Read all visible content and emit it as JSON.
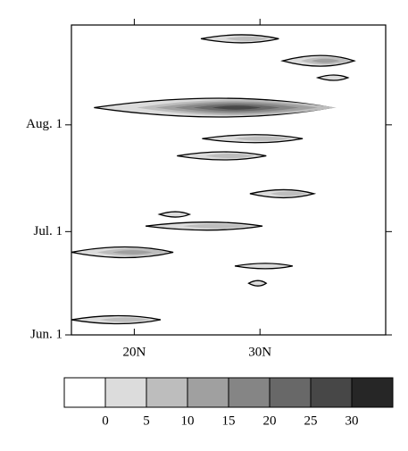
{
  "chart_data": {
    "type": "contour",
    "xlim": [
      15,
      40
    ],
    "xticks": [
      {
        "value": 20,
        "label": "20N"
      },
      {
        "value": 30,
        "label": "30N"
      }
    ],
    "ylim": [
      0,
      90
    ],
    "yticks": [
      {
        "value": 0,
        "label": "Jun. 1"
      },
      {
        "value": 30,
        "label": "Jul. 1"
      },
      {
        "value": 61,
        "label": "Aug. 1"
      }
    ],
    "features": [
      {
        "lat": [
          25.3,
          31.5
        ],
        "day": 86,
        "level": 5
      },
      {
        "lat": [
          31.8,
          37.5
        ],
        "day": 79.6,
        "level": 10
      },
      {
        "lat": [
          34.6,
          37
        ],
        "day": 74.7,
        "level": 0
      },
      {
        "lat": [
          16.8,
          35.7
        ],
        "day": 66,
        "level": 25
      },
      {
        "lat": [
          25.4,
          33.4
        ],
        "day": 57,
        "level": 5
      },
      {
        "lat": [
          23.4,
          30.5
        ],
        "day": 52,
        "level": 5
      },
      {
        "lat": [
          29.2,
          34.3
        ],
        "day": 41,
        "level": 5
      },
      {
        "lat": [
          22,
          24.4
        ],
        "day": 35,
        "level": 0
      },
      {
        "lat": [
          20.9,
          30.2
        ],
        "day": 31.6,
        "level": 5
      },
      {
        "lat": [
          15,
          23.1
        ],
        "day": 24,
        "level": 10
      },
      {
        "lat": [
          28,
          32.6
        ],
        "day": 20,
        "level": 0
      },
      {
        "lat": [
          29.1,
          30.5
        ],
        "day": 15,
        "level": 0
      },
      {
        "lat": [
          15,
          22.1
        ],
        "day": 4.4,
        "level": 5
      }
    ],
    "levels": [
      0,
      5,
      10,
      15,
      20,
      25,
      30
    ],
    "colors": [
      "#ffffff",
      "#dcdcdc",
      "#bdbdbd",
      "#a0a0a0",
      "#858585",
      "#686868",
      "#474747",
      "#262626"
    ]
  }
}
